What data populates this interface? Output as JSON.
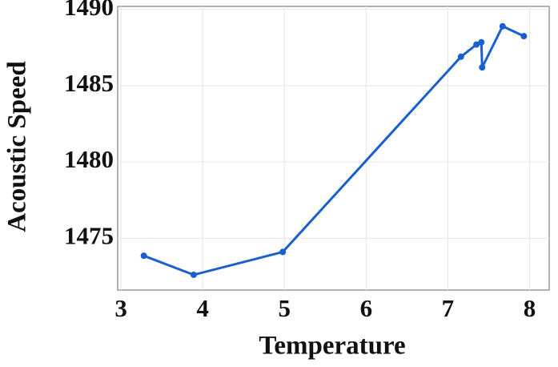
{
  "chart_data": {
    "type": "line",
    "x_label": "Temperature",
    "y_label": "Acoustic Speed",
    "x": [
      3.28,
      3.89,
      4.98,
      7.16,
      7.35,
      7.41,
      7.42,
      7.67,
      7.93
    ],
    "series": [
      {
        "color": "#1a5fd0",
        "values": [
          1473.85,
          1472.6,
          1474.1,
          1486.9,
          1487.7,
          1487.85,
          1486.2,
          1488.9,
          1488.25
        ]
      }
    ],
    "xlim": [
      2.96,
      8.24
    ],
    "xticks": [
      3,
      4,
      5,
      6,
      7,
      8
    ],
    "ylim": [
      1471.6,
      1490.2
    ],
    "yticks": [
      1475,
      1480,
      1485,
      1490
    ],
    "grid": true
  }
}
